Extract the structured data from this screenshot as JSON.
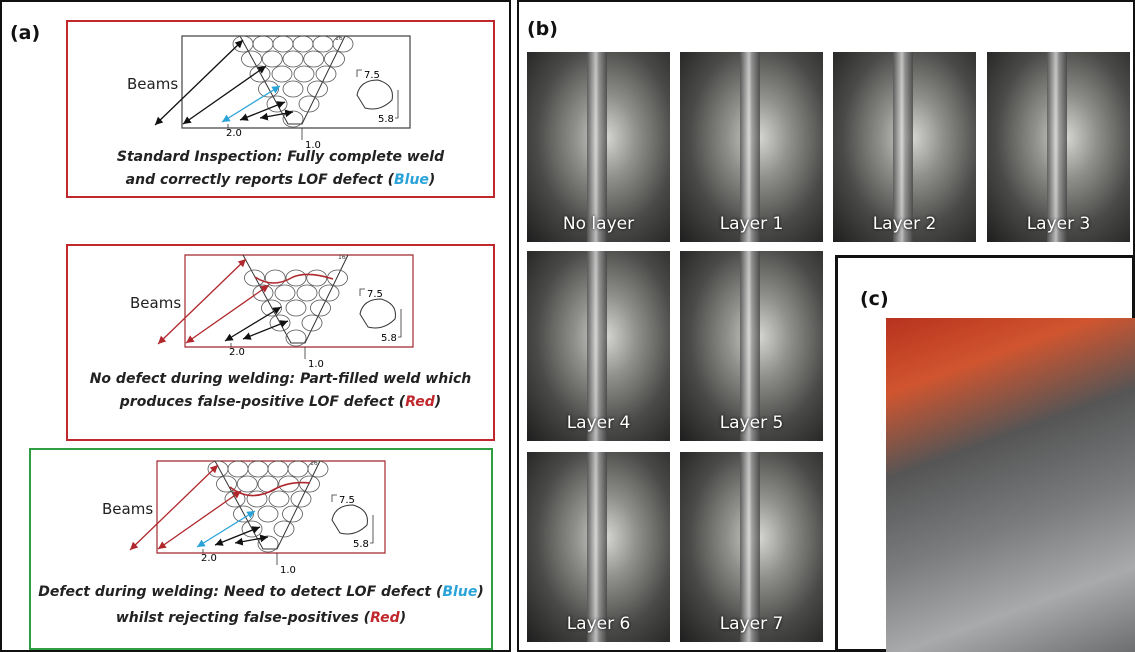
{
  "panel_a": {
    "label": "(a)",
    "diagrams": [
      {
        "beams": "Beams",
        "pass": "16",
        "dims": [
          "7.5",
          "5.8",
          "2.0",
          "1.0"
        ],
        "caption": [
          [
            {
              "text": "Standard Inspection: Fully complete weld"
            }
          ],
          [
            {
              "text": "and correctly reports LOF defect ("
            },
            {
              "text": "Blue",
              "color": "#2aa3d8"
            },
            {
              "text": ")"
            }
          ]
        ]
      },
      {
        "beams": "Beams",
        "pass": "16",
        "dims": [
          "7.5",
          "5.8",
          "2.0",
          "1.0"
        ],
        "caption": [
          [
            {
              "text": "No defect during welding: Part-filled weld which"
            }
          ],
          [
            {
              "text": "produces false-positive LOF defect ("
            },
            {
              "text": "Red",
              "color": "#c0282d"
            },
            {
              "text": ")"
            }
          ]
        ]
      },
      {
        "beams": "Beams",
        "pass": "16",
        "dims": [
          "7.5",
          "5.8",
          "2.0",
          "1.0"
        ],
        "caption": [
          [
            {
              "text": "Defect during welding: Need to detect LOF defect ("
            },
            {
              "text": "Blue",
              "color": "#2aa3d8"
            },
            {
              "text": ")"
            }
          ],
          [
            {
              "text": "whilst rejecting false-positives ("
            },
            {
              "text": "Red",
              "color": "#c0282d"
            },
            {
              "text": ")"
            }
          ]
        ]
      }
    ]
  },
  "panel_b": {
    "label": "(b)",
    "photos": [
      "No layer",
      "Layer 1",
      "Layer 2",
      "Layer 3",
      "Layer 4",
      "Layer 5",
      "Layer 6",
      "Layer 7"
    ]
  },
  "panel_c": {
    "label": "(c)"
  }
}
